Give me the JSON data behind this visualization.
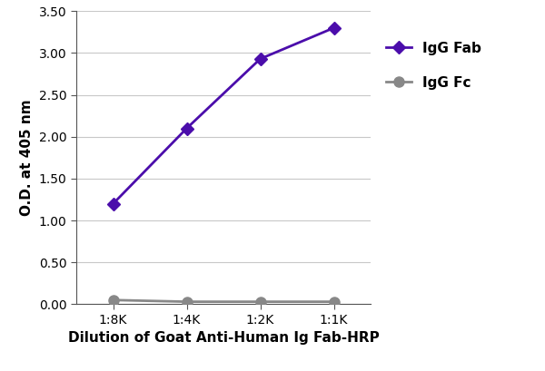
{
  "x_positions": [
    1,
    2,
    3,
    4
  ],
  "x_labels": [
    "1:8K",
    "1:4K",
    "1:2K",
    "1:1K"
  ],
  "igg_fab_values": [
    1.2,
    2.1,
    2.93,
    3.3
  ],
  "igg_fc_values": [
    0.05,
    0.03,
    0.03,
    0.03
  ],
  "igg_fab_color": "#4b0dab",
  "igg_fc_color": "#888888",
  "xlabel": "Dilution of Goat Anti-Human Ig Fab-HRP",
  "ylabel": "O.D. at 405 nm",
  "ylim": [
    0.0,
    3.5
  ],
  "yticks": [
    0.0,
    0.5,
    1.0,
    1.5,
    2.0,
    2.5,
    3.0,
    3.5
  ],
  "ytick_labels": [
    "0.00",
    "0.50",
    "1.00",
    "1.50",
    "2.00",
    "2.50",
    "3.00",
    "3.50"
  ],
  "legend_fab": "IgG Fab",
  "legend_fc": "IgG Fc",
  "fab_marker": "D",
  "fc_marker": "o",
  "line_width": 2.0,
  "marker_size": 7,
  "fc_marker_size": 8,
  "background_color": "#ffffff",
  "grid_color": "#c8c8c8",
  "axis_fontsize": 11,
  "tick_fontsize": 10,
  "legend_fontsize": 11
}
